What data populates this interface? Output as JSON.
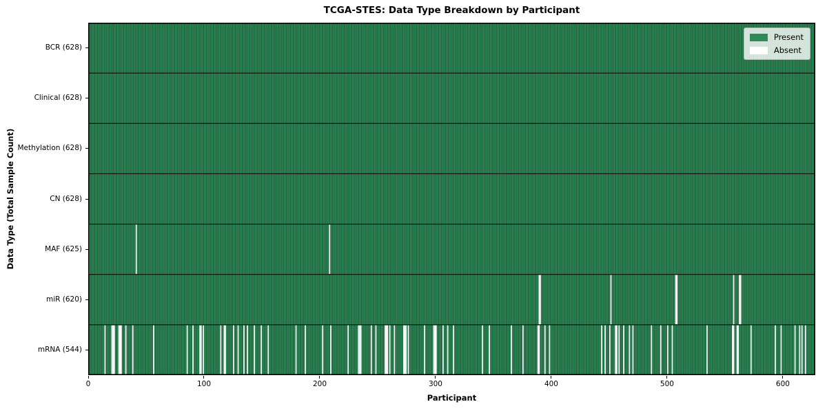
{
  "chart_data": {
    "type": "heatmap",
    "title": "TCGA-STES: Data Type Breakdown by Participant",
    "xlabel": "Participant",
    "ylabel": "Data Type (Total Sample Count)",
    "n_participants": 628,
    "xlim": [
      0,
      628
    ],
    "x_ticks": [
      0,
      100,
      200,
      300,
      400,
      500,
      600
    ],
    "grid": false,
    "legend": {
      "position": "upper right",
      "entries": [
        {
          "label": "Present",
          "color": "#2e8b57"
        },
        {
          "label": "Absent",
          "color": "#ffffff"
        }
      ]
    },
    "colors": {
      "present": "#2e8b57",
      "present_edge": "#16402a",
      "absent": "#ffffff",
      "row_divider": "#0d0d0d",
      "spine": "#000000"
    },
    "rows": [
      {
        "label": "BCR (628)",
        "data_type": "BCR",
        "present_count": 628,
        "absent_count": 0,
        "absent_participants": []
      },
      {
        "label": "Clinical (628)",
        "data_type": "Clinical",
        "present_count": 628,
        "absent_count": 0,
        "absent_participants": []
      },
      {
        "label": "Methylation (628)",
        "data_type": "Methylation",
        "present_count": 628,
        "absent_count": 0,
        "absent_participants": []
      },
      {
        "label": "CN (628)",
        "data_type": "CN",
        "present_count": 628,
        "absent_count": 0,
        "absent_participants": []
      },
      {
        "label": "MAF (625)",
        "data_type": "MAF",
        "present_count": 625,
        "absent_count": 3,
        "absent_participants": [
          0,
          41,
          208
        ]
      },
      {
        "label": "miR (620)",
        "data_type": "miR",
        "present_count": 620,
        "absent_count": 8,
        "absent_participants": [
          389,
          390,
          451,
          507,
          508,
          557,
          562,
          563
        ]
      },
      {
        "label": "mRNA (544)",
        "data_type": "mRNA",
        "present_count": 544,
        "absent_count": 84,
        "absent_participants": [
          14,
          20,
          21,
          22,
          26,
          27,
          28,
          32,
          38,
          56,
          85,
          90,
          96,
          97,
          99,
          114,
          117,
          118,
          125,
          129,
          134,
          137,
          143,
          149,
          155,
          179,
          187,
          202,
          209,
          224,
          233,
          234,
          235,
          244,
          248,
          256,
          257,
          258,
          260,
          264,
          272,
          273,
          274,
          276,
          290,
          298,
          299,
          300,
          306,
          310,
          315,
          340,
          346,
          365,
          375,
          388,
          389,
          394,
          398,
          443,
          446,
          450,
          455,
          456,
          458,
          462,
          467,
          470,
          486,
          494,
          500,
          504,
          534,
          556,
          557,
          560,
          561,
          572,
          593,
          598,
          610,
          614,
          616,
          619
        ]
      }
    ]
  }
}
